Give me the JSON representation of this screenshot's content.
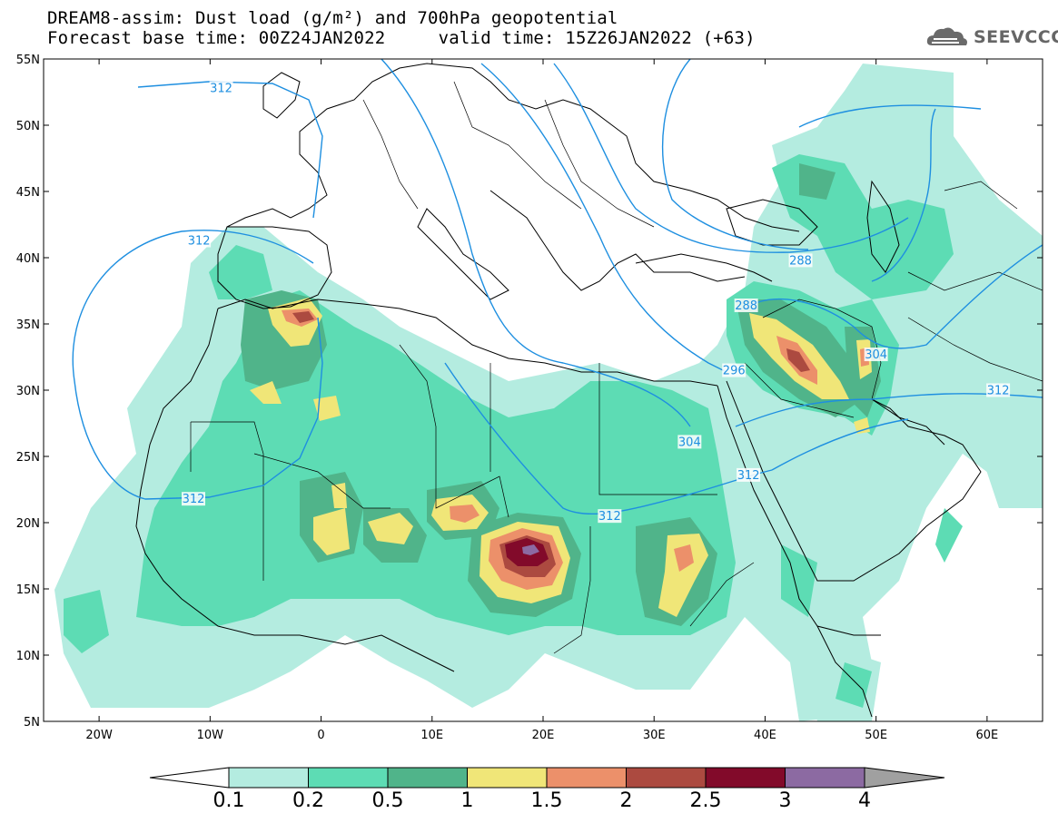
{
  "title": {
    "line1": "DREAM8-assim: Dust load (g/m²) and 700hPa geopotential",
    "line2": "Forecast base time: 00Z24JAN2022     valid time: 15Z26JAN2022 (+63)"
  },
  "logo": {
    "text": "SEEVCCC",
    "icon": "cloud-icon"
  },
  "axes": {
    "lat_labels": [
      "55N",
      "50N",
      "45N",
      "40N",
      "35N",
      "30N",
      "25N",
      "20N",
      "15N",
      "10N",
      "5N"
    ],
    "lat_values": [
      55,
      50,
      45,
      40,
      35,
      30,
      25,
      20,
      15,
      10,
      5
    ],
    "lon_labels": [
      "20W",
      "10W",
      "0",
      "10E",
      "20E",
      "30E",
      "40E",
      "50E",
      "60E"
    ],
    "lon_values": [
      -20,
      -10,
      0,
      10,
      20,
      30,
      40,
      50,
      60
    ],
    "lon_range": [
      -25,
      65
    ],
    "lat_range": [
      5,
      55
    ]
  },
  "contours": {
    "color": "#1e8fe0",
    "labels": [
      {
        "text": "312",
        "lon": -9,
        "lat": 52.7
      },
      {
        "text": "312",
        "lon": -11,
        "lat": 41.2
      },
      {
        "text": "312",
        "lon": -11.5,
        "lat": 21.7
      },
      {
        "text": "304",
        "lon": 33.2,
        "lat": 26
      },
      {
        "text": "312",
        "lon": 26,
        "lat": 20.4
      },
      {
        "text": "312",
        "lon": 38.5,
        "lat": 23.5
      },
      {
        "text": "288",
        "lon": 43.2,
        "lat": 39.7
      },
      {
        "text": "288",
        "lon": 38.3,
        "lat": 36.3
      },
      {
        "text": "296",
        "lon": 37.2,
        "lat": 31.4
      },
      {
        "text": "304",
        "lon": 50,
        "lat": 32.6
      },
      {
        "text": "312",
        "lon": 61,
        "lat": 29.9
      }
    ]
  },
  "colorbar": {
    "levels": [
      "0.1",
      "0.2",
      "0.5",
      "1",
      "1.5",
      "2",
      "2.5",
      "3",
      "4"
    ],
    "colors": [
      "#ffffff",
      "#b4ece0",
      "#5ddcb4",
      "#50b48a",
      "#f0e678",
      "#ec906a",
      "#ac4a40",
      "#820a2a",
      "#8c6aa2",
      "#a0a0a0"
    ]
  },
  "dust_level_colors": {
    "l1": "#b4ece0",
    "l2": "#5ddcb4",
    "l3": "#50b48a",
    "l4": "#f0e678",
    "l5": "#ec906a",
    "l6": "#ac4a40",
    "l7": "#820a2a",
    "l8": "#8c6aa2"
  }
}
